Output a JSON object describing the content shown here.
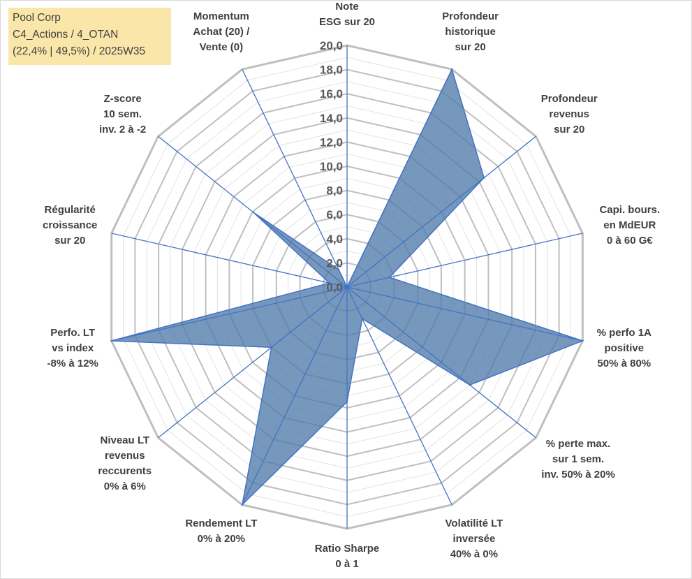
{
  "title_box": {
    "line1": "Pool Corp",
    "line2": "C4_Actions / 4_OTAN",
    "line3": "(22,4% | 49,5%) / 2025W35",
    "background": "#fbe6a9"
  },
  "chart_data": {
    "type": "radar",
    "r_min": 0,
    "r_max": 20,
    "tick_step": 2,
    "tick_labels": [
      "0,0",
      "2,0",
      "4,0",
      "6,0",
      "8,0",
      "10,0",
      "12,0",
      "14,0",
      "16,0",
      "18,0",
      "20,0"
    ],
    "grid": true,
    "fill_color": "#4f7ba9",
    "line_color": "#4472c4",
    "grid_color": "#bfbfbf",
    "axes": [
      {
        "lines": [
          "Note",
          "ESG sur 20"
        ],
        "value": 0
      },
      {
        "lines": [
          "Profondeur",
          "historique",
          "sur 20"
        ],
        "value": 20
      },
      {
        "lines": [
          "Profondeur",
          "revenus",
          "sur 20"
        ],
        "value": 14.5
      },
      {
        "lines": [
          "Capi. bours.",
          "en MdEUR",
          "0 à 60 G€"
        ],
        "value": 3.6
      },
      {
        "lines": [
          "% perfo 1A",
          "positive",
          "50% à 80%"
        ],
        "value": 20
      },
      {
        "lines": [
          "% perte max.",
          "sur 1 sem.",
          "inv. 50% à 20%"
        ],
        "value": 13
      },
      {
        "lines": [
          "Volatilité LT",
          "inversée",
          "40% à 0%"
        ],
        "value": 2.9
      },
      {
        "lines": [
          "Ratio Sharpe",
          "0 à 1"
        ],
        "value": 9.5
      },
      {
        "lines": [
          "Rendement LT",
          "0% à 20%"
        ],
        "value": 20
      },
      {
        "lines": [
          "Niveau LT",
          "revenus",
          "reccurents",
          "0% à 6%"
        ],
        "value": 8
      },
      {
        "lines": [
          "Perfo. LT",
          "vs index",
          "-8% à 12%"
        ],
        "value": 20
      },
      {
        "lines": [
          "Régularité",
          "croissance",
          "sur 20"
        ],
        "value": 1.5
      },
      {
        "lines": [
          "Z-score",
          "10 sem.",
          "inv. 2 à -2"
        ],
        "value": 9.9
      },
      {
        "lines": [
          "Momentum",
          "Achat (20) /",
          "Vente (0)"
        ],
        "value": 1.6
      }
    ]
  }
}
